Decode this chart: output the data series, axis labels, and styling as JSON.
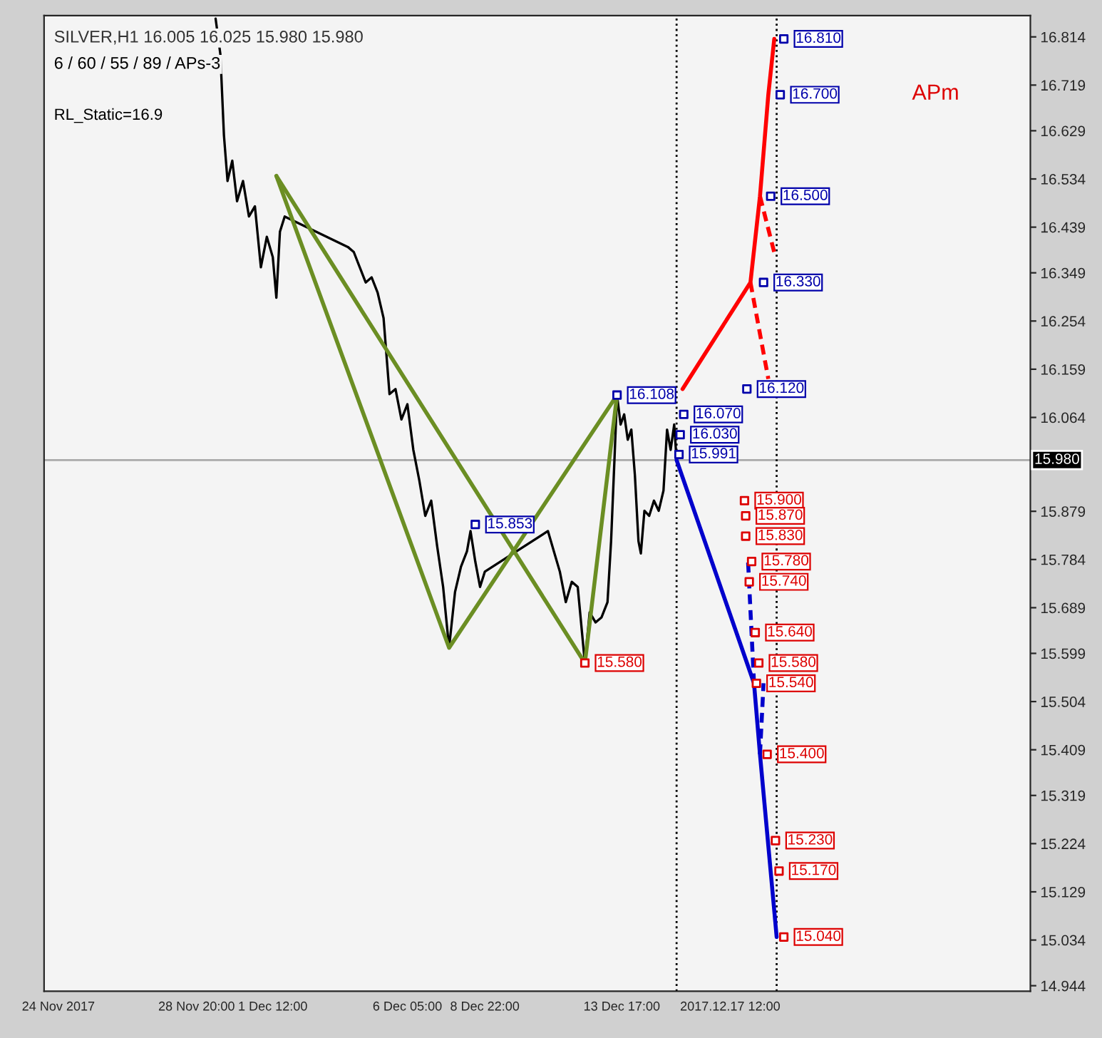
{
  "chart_data": {
    "type": "line",
    "xlim": [
      "2017-11-23T12:00",
      "2017-12-28T00:00"
    ],
    "ylim": [
      14.933,
      16.856
    ],
    "xticks": [
      {
        "value": "2017-11-24T00:00",
        "label": "24 Nov 2017"
      },
      {
        "value": "2017-11-28T20:00",
        "label": "28 Nov 20:00"
      },
      {
        "value": "2017-12-01T12:00",
        "label": "1 Dec 12:00"
      },
      {
        "value": "2017-12-06T05:00",
        "label": "6 Dec 05:00"
      },
      {
        "value": "2017-12-08T22:00",
        "label": "8 Dec 22:00"
      },
      {
        "value": "2017-12-13T17:00",
        "label": "13 Dec 17:00"
      },
      {
        "value": "2017-12-17T12:00",
        "label": "2017.12.17 12:00"
      }
    ],
    "yticks": [
      14.944,
      15.034,
      15.129,
      15.224,
      15.319,
      15.409,
      15.504,
      15.599,
      15.689,
      15.784,
      15.879,
      16.064,
      16.159,
      16.254,
      16.349,
      16.439,
      16.534,
      16.629,
      16.719,
      16.814
    ],
    "grid": false,
    "legend": false,
    "series": [
      {
        "color": "#000000",
        "marker": "none",
        "line_style": "solid",
        "x": [
          "2017-11-29T12:00",
          "2017-11-29T16:00",
          "2017-11-29T19:00",
          "2017-11-29T22:00",
          "2017-11-30T02:00",
          "2017-11-30T06:00",
          "2017-11-30T11:00",
          "2017-11-30T16:00",
          "2017-11-30T21:00",
          "2017-12-01T02:00",
          "2017-12-01T07:00",
          "2017-12-01T12:00",
          "2017-12-01T15:00",
          "2017-12-01T18:00",
          "2017-12-01T22:00",
          "2017-12-04T03:00",
          "2017-12-04T08:00",
          "2017-12-04T13:00",
          "2017-12-04T18:00",
          "2017-12-04T23:00",
          "2017-12-05T04:00",
          "2017-12-05T09:00",
          "2017-12-05T14:00",
          "2017-12-05T19:00",
          "2017-12-06T00:00",
          "2017-12-06T05:00",
          "2017-12-06T10:00",
          "2017-12-06T15:00",
          "2017-12-06T20:00",
          "2017-12-07T01:00",
          "2017-12-07T06:00",
          "2017-12-07T11:00",
          "2017-12-07T16:00",
          "2017-12-07T21:00",
          "2017-12-08T02:00",
          "2017-12-08T07:00",
          "2017-12-08T10:00",
          "2017-12-08T14:00",
          "2017-12-08T18:00",
          "2017-12-08T22:00",
          "2017-12-11T03:00",
          "2017-12-11T08:00",
          "2017-12-11T13:00",
          "2017-12-11T18:00",
          "2017-12-11T23:00",
          "2017-12-12T04:00",
          "2017-12-12T10:00",
          "2017-12-12T14:00",
          "2017-12-12T19:00",
          "2017-12-13T00:00",
          "2017-12-13T05:00",
          "2017-12-13T08:00",
          "2017-12-13T11:00",
          "2017-12-13T13:00",
          "2017-12-13T16:00",
          "2017-12-13T19:00",
          "2017-12-13T22:00",
          "2017-12-14T01:00",
          "2017-12-14T04:00",
          "2017-12-14T07:00",
          "2017-12-14T09:00",
          "2017-12-14T12:00",
          "2017-12-14T16:00",
          "2017-12-14T20:00",
          "2017-12-15T00:00",
          "2017-12-15T04:00",
          "2017-12-15T07:00",
          "2017-12-15T10:00",
          "2017-12-15T13:00",
          "2017-12-15T15:00"
        ],
        "values": [
          16.85,
          16.78,
          16.62,
          16.53,
          16.57,
          16.49,
          16.53,
          16.46,
          16.48,
          16.36,
          16.42,
          16.38,
          16.3,
          16.43,
          16.46,
          16.4,
          16.39,
          16.36,
          16.33,
          16.34,
          16.31,
          16.26,
          16.11,
          16.12,
          16.06,
          16.09,
          16.0,
          15.94,
          15.87,
          15.9,
          15.81,
          15.73,
          15.61,
          15.72,
          15.77,
          15.8,
          15.84,
          15.78,
          15.73,
          15.76,
          15.84,
          15.8,
          15.76,
          15.7,
          15.74,
          15.73,
          15.58,
          15.68,
          15.66,
          15.67,
          15.7,
          15.82,
          15.99,
          16.108,
          16.05,
          16.07,
          16.02,
          16.04,
          15.95,
          15.82,
          15.796,
          15.88,
          15.87,
          15.9,
          15.88,
          15.92,
          16.04,
          16.0,
          16.05,
          15.98
        ]
      },
      {
        "color": "#6b8e23",
        "marker": "none",
        "line_style": "solid",
        "x": [
          "2017-12-01T15:00",
          "2017-12-07T16:00",
          "2017-12-13T13:00"
        ],
        "values": [
          16.54,
          15.61,
          16.108
        ]
      },
      {
        "color": "#6b8e23",
        "marker": "none",
        "line_style": "solid",
        "x": [
          "2017-12-01T15:00",
          "2017-12-12T10:00",
          "2017-12-13T13:00"
        ],
        "values": [
          16.54,
          15.58,
          16.108
        ]
      },
      {
        "color": "#ff0000",
        "marker": "none",
        "line_style": "solid",
        "x": [
          "2017-12-15T20:00",
          "2017-12-18T05:00",
          "2017-12-18T13:00",
          "2017-12-18T20:00",
          "2017-12-19T01:00"
        ],
        "values": [
          16.12,
          16.33,
          16.5,
          16.7,
          16.81
        ]
      },
      {
        "color": "#ff0000",
        "marker": "none",
        "line_style": "dashed",
        "x": [
          "2017-12-18T13:00",
          "2017-12-19T02:00"
        ],
        "values": [
          16.5,
          16.38
        ]
      },
      {
        "color": "#ff0000",
        "marker": "none",
        "line_style": "dashed",
        "x": [
          "2017-12-18T05:00",
          "2017-12-18T20:00"
        ],
        "values": [
          16.33,
          16.14
        ]
      },
      {
        "color": "#0000cc",
        "marker": "none",
        "line_style": "solid",
        "x": [
          "2017-12-15T15:00",
          "2017-12-18T08:00",
          "2017-12-18T13:00",
          "2017-12-19T03:00"
        ],
        "values": [
          15.98,
          15.54,
          15.4,
          15.04
        ]
      },
      {
        "color": "#0000cc",
        "marker": "none",
        "line_style": "dashed",
        "x": [
          "2017-12-18T13:00",
          "2017-12-18T16:00"
        ],
        "values": [
          15.4,
          15.54
        ]
      },
      {
        "color": "#0000cc",
        "marker": "none",
        "line_style": "dashed",
        "x": [
          "2017-12-18T08:00",
          "2017-12-18T03:00"
        ],
        "values": [
          15.54,
          15.78
        ]
      },
      {
        "type": "scatter",
        "color": "#0000aa",
        "marker": "square",
        "x": [
          "2017-12-19T09:00",
          "2017-12-19T06:00",
          "2017-12-18T22:00",
          "2017-12-18T16:00",
          "2017-12-18T02:00",
          "2017-12-15T21:00",
          "2017-12-15T18:00",
          "2017-12-15T17:00",
          "2017-12-13T13:00",
          "2017-12-08T14:00"
        ],
        "values": [
          16.81,
          16.7,
          16.5,
          16.33,
          16.12,
          16.07,
          16.03,
          15.991,
          16.108,
          15.853
        ],
        "value_labels": [
          "16.810",
          "16.700",
          "16.500",
          "16.330",
          "16.120",
          "16.070",
          "16.030",
          "15.991",
          "16.108",
          "15.853"
        ]
      },
      {
        "type": "scatter",
        "color": "#dd0000",
        "marker": "square",
        "x": [
          "2017-12-18T00:00",
          "2017-12-18T01:00",
          "2017-12-18T01:00",
          "2017-12-18T06:00",
          "2017-12-18T04:00",
          "2017-12-18T09:00",
          "2017-12-18T12:00",
          "2017-12-18T10:00",
          "2017-12-18T19:00",
          "2017-12-19T02:00",
          "2017-12-19T05:00",
          "2017-12-19T09:00",
          "2017-12-12T10:00"
        ],
        "values": [
          15.9,
          15.87,
          15.83,
          15.78,
          15.74,
          15.64,
          15.58,
          15.54,
          15.4,
          15.23,
          15.17,
          15.04,
          15.58
        ],
        "value_labels": [
          "15.900",
          "15.870",
          "15.830",
          "15.780",
          "15.740",
          "15.640",
          "15.580",
          "15.540",
          "15.400",
          "15.230",
          "15.170",
          "15.040",
          "15.580"
        ]
      }
    ],
    "ref_lines": [
      {
        "axis": "y",
        "value": 15.98,
        "label": "15.980",
        "color": "#aaaaaa",
        "line_style": "solid"
      },
      {
        "axis": "x",
        "value": "2017-12-15T15:00",
        "color": "#000000",
        "line_style": "dotted"
      },
      {
        "axis": "x",
        "value": "2017-12-19T03:00",
        "color": "#000000",
        "line_style": "dotted"
      }
    ],
    "annotations": [
      "SILVER,H1 16.005 16.025 15.980 15.980",
      "6 / 60 / 55 / 89 / APs-3",
      "RL_Static=16.9",
      "APm"
    ]
  }
}
